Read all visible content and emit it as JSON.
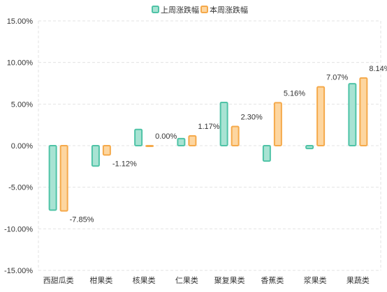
{
  "chart_data": {
    "type": "bar",
    "categories": [
      "西甜瓜类",
      "柑果类",
      "核果类",
      "仁果类",
      "聚复果类",
      "香蕉类",
      "浆果类",
      "果蔬类"
    ],
    "series": [
      {
        "name": "上周涨跌幅",
        "color": "#4fc3a6",
        "fill": "#a8e3d3",
        "values": [
          -7.75,
          -2.45,
          1.95,
          0.85,
          5.2,
          -1.85,
          -0.35,
          7.45
        ]
      },
      {
        "name": "本周涨跌幅",
        "color": "#f5a94a",
        "fill": "#fdd6a0",
        "values": [
          -7.85,
          -1.12,
          0.0,
          1.17,
          2.3,
          5.16,
          7.07,
          8.14
        ],
        "labels": [
          "-7.85%",
          "-1.12%",
          "0.00%",
          "1.17%",
          "2.30%",
          "5.16%",
          "7.07%",
          "8.14%"
        ]
      }
    ],
    "ylim": [
      -15,
      15
    ],
    "yticks": [
      15,
      10,
      5,
      0,
      -5,
      -10,
      -15
    ],
    "ytick_labels": [
      "15.00%",
      "10.00%",
      "5.00%",
      "0.00%",
      "-5.00%",
      "-10.00%",
      "-15.00%"
    ],
    "grid": true,
    "legend_position": "top-center"
  }
}
